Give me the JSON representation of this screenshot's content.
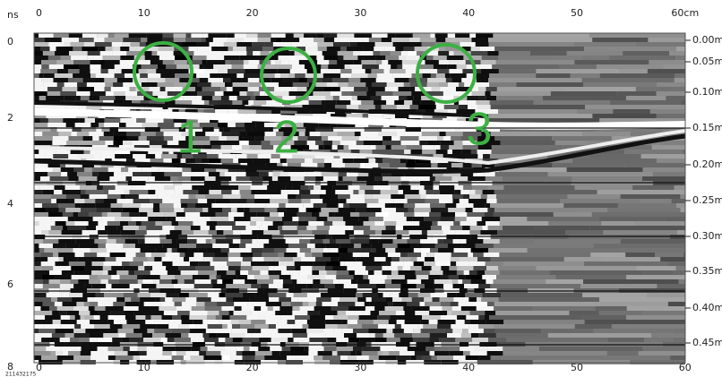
{
  "top_axis": {
    "labels": [
      "0",
      "10",
      "20",
      "30",
      "40",
      "50",
      "60cm"
    ]
  },
  "left_axis": {
    "unit": "ns",
    "labels": [
      "0",
      "2",
      "4",
      "6",
      "8"
    ]
  },
  "right_axis": {
    "labels": [
      "0.00m",
      "0.05m",
      "0.10m",
      "0.15m",
      "0.20m",
      "0.25m",
      "0.30m",
      "0.35m",
      "0.40m",
      "0.45m"
    ]
  },
  "bottom_axis": {
    "labels": [
      "0",
      "10",
      "20",
      "30",
      "40",
      "50",
      "60"
    ]
  },
  "file_id": "211432175",
  "markers": [
    {
      "label": "1"
    },
    {
      "label": "2"
    },
    {
      "label": "3"
    }
  ]
}
